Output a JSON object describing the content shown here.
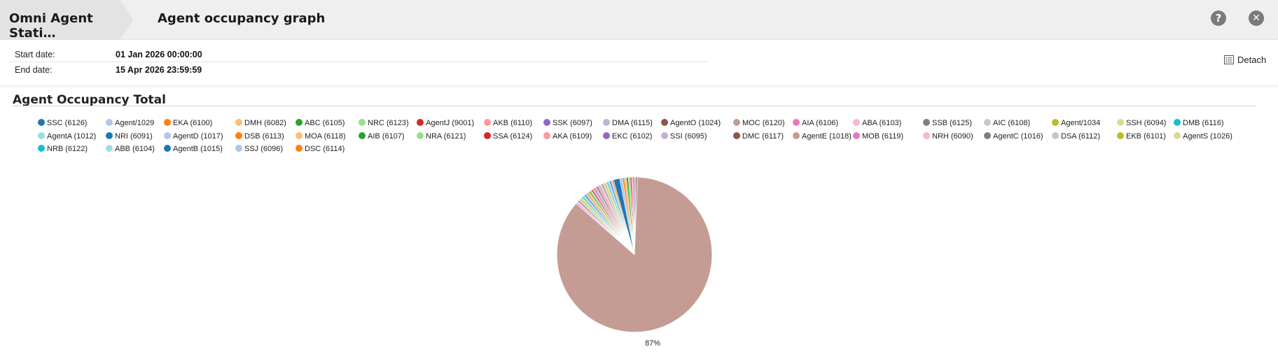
{
  "header": {
    "app_title": "Omni Agent Stati…",
    "page_title": "Agent occupancy graph",
    "help_glyph": "?",
    "close_glyph": "✕"
  },
  "dates": {
    "start_label": "Start date:",
    "start_value": "01 Jan 2026 00:00:00",
    "end_label": "End date:",
    "end_value": "15 Apr 2026 23:59:59"
  },
  "detach_label": "Detach",
  "chart_data": {
    "type": "pie",
    "title": "Agent Occupancy Total",
    "legend_position": "top",
    "dominant_label": "87%",
    "slices": [
      {
        "name": "SSC (6126)",
        "value": 1.3,
        "color": "#1f77b4"
      },
      {
        "name": "Agent/1029",
        "value": 0.6,
        "color": "#aec7e8"
      },
      {
        "name": "EKA (6100)",
        "value": 0.4,
        "color": "#ff7f0e"
      },
      {
        "name": "DMH (6082)",
        "value": 0.4,
        "color": "#ffbb78"
      },
      {
        "name": "ABC (6105)",
        "value": 0.4,
        "color": "#2ca02c"
      },
      {
        "name": "NRC (6123)",
        "value": 0.4,
        "color": "#98df8a"
      },
      {
        "name": "AgentJ (9001)",
        "value": 0.3,
        "color": "#d62728"
      },
      {
        "name": "AKB (6110)",
        "value": 0.3,
        "color": "#ff9896"
      },
      {
        "name": "SSK (6097)",
        "value": 0.3,
        "color": "#9467bd"
      },
      {
        "name": "DMA (6115)",
        "value": 0.3,
        "color": "#c5b0d5"
      },
      {
        "name": "AgentO (1024)",
        "value": 0.3,
        "color": "#8c564b"
      },
      {
        "name": "MOC (6120)",
        "value": 87.0,
        "color": "#c49c94"
      },
      {
        "name": "AIA (6106)",
        "value": 0.3,
        "color": "#e377c2"
      },
      {
        "name": "ABA (6103)",
        "value": 0.3,
        "color": "#f7b6d2"
      },
      {
        "name": "SSB (6125)",
        "value": 0.3,
        "color": "#7f7f7f"
      },
      {
        "name": "AIC (6108)",
        "value": 0.3,
        "color": "#c7c7c7"
      },
      {
        "name": "Agent/1034",
        "value": 0.3,
        "color": "#bcbd22"
      },
      {
        "name": "SSH (6094)",
        "value": 0.3,
        "color": "#dbdb8d"
      },
      {
        "name": "DMB (6116)",
        "value": 0.3,
        "color": "#17becf"
      },
      {
        "name": "AgentA (1012)",
        "value": 0.3,
        "color": "#9edae5"
      },
      {
        "name": "NRI (6091)",
        "value": 0.3,
        "color": "#1f77b4"
      },
      {
        "name": "AgentD (1017)",
        "value": 0.3,
        "color": "#aec7e8"
      },
      {
        "name": "DSB (6113)",
        "value": 0.3,
        "color": "#ff7f0e"
      },
      {
        "name": "MOA (6118)",
        "value": 0.3,
        "color": "#ffbb78"
      },
      {
        "name": "AIB (6107)",
        "value": 0.3,
        "color": "#2ca02c"
      },
      {
        "name": "NRA (6121)",
        "value": 0.3,
        "color": "#98df8a"
      },
      {
        "name": "SSA (6124)",
        "value": 0.3,
        "color": "#d62728"
      },
      {
        "name": "AKA (6109)",
        "value": 0.3,
        "color": "#ff9896"
      },
      {
        "name": "EKC (6102)",
        "value": 0.3,
        "color": "#9467bd"
      },
      {
        "name": "SSI (6095)",
        "value": 0.3,
        "color": "#c5b0d5"
      },
      {
        "name": "DMC (6117)",
        "value": 0.3,
        "color": "#8c564b"
      },
      {
        "name": "AgentE (1018)",
        "value": 0.3,
        "color": "#c49c94"
      },
      {
        "name": "MOB (6119)",
        "value": 0.3,
        "color": "#e377c2"
      },
      {
        "name": "NRH (6090)",
        "value": 0.3,
        "color": "#f7b6d2"
      },
      {
        "name": "AgentC (1016)",
        "value": 0.3,
        "color": "#7f7f7f"
      },
      {
        "name": "DSA (6112)",
        "value": 0.3,
        "color": "#c7c7c7"
      },
      {
        "name": "EKB (6101)",
        "value": 0.3,
        "color": "#bcbd22"
      },
      {
        "name": "AgentS (1026)",
        "value": 0.3,
        "color": "#dbdb8d"
      },
      {
        "name": "NRB (6122)",
        "value": 0.3,
        "color": "#17becf"
      },
      {
        "name": "ABB (6104)",
        "value": 0.3,
        "color": "#9edae5"
      },
      {
        "name": "AgentB (1015)",
        "value": 0.3,
        "color": "#1f77b4"
      },
      {
        "name": "SSJ (6096)",
        "value": 0.3,
        "color": "#aec7e8"
      },
      {
        "name": "DSC (6114)",
        "value": 0.3,
        "color": "#ff7f0e"
      }
    ]
  }
}
